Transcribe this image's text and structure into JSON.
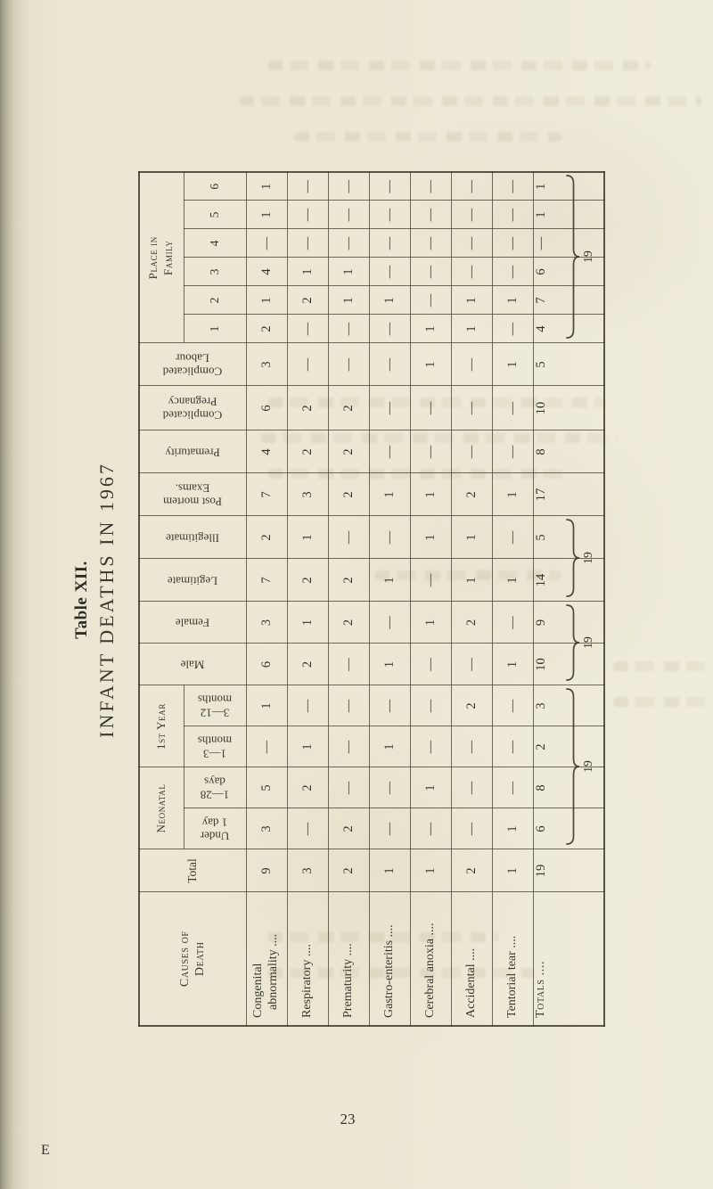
{
  "title": {
    "table_label": "Table XII.",
    "heading": "INFANT DEATHS IN 1967"
  },
  "table": {
    "corner_lines": [
      "Causes of",
      "Death"
    ],
    "total_label": "Total",
    "groups": [
      {
        "label": "Neonatal",
        "subs": [
          [
            "Under",
            "1 day"
          ],
          [
            "1—28",
            "days"
          ]
        ]
      },
      {
        "label": "1st Year",
        "subs": [
          [
            "1—3",
            "months"
          ],
          [
            "3—12",
            "months"
          ]
        ]
      }
    ],
    "vertical_headers": [
      [
        "Male"
      ],
      [
        "Female"
      ],
      [
        "Legitimate"
      ],
      [
        "Illegitimate"
      ],
      [
        "Post mortem",
        "Exams."
      ],
      [
        "Prematurity"
      ],
      [
        "Complicated",
        "Pregnancy"
      ],
      [
        "Complicated",
        "Labour"
      ]
    ],
    "place_group": {
      "label_lines": [
        "Place in",
        "Family"
      ],
      "subs": [
        "1",
        "2",
        "3",
        "4",
        "5",
        "6"
      ]
    },
    "column_order_note": "values arrays follow: Total, Under 1 day, 1-28 days, 1-3 months, 3-12 months, Male, Female, Legitimate, Illegitimate, Post mortem Exams., Prematurity, Complicated Pregnancy, Complicated Labour, Place 1, 2, 3, 4, 5, 6",
    "rows": [
      {
        "label_lines": [
          "Congenital",
          "abnormality ...."
        ],
        "values": [
          "9",
          "3",
          "5",
          "—",
          "1",
          "6",
          "3",
          "7",
          "2",
          "7",
          "4",
          "6",
          "3",
          "2",
          "1",
          "4",
          "—",
          "1",
          "1"
        ]
      },
      {
        "label_lines": [
          "Respiratory ...."
        ],
        "values": [
          "3",
          "—",
          "2",
          "1",
          "—",
          "2",
          "1",
          "2",
          "1",
          "3",
          "2",
          "2",
          "—",
          "—",
          "2",
          "1",
          "—",
          "—",
          "—"
        ]
      },
      {
        "label_lines": [
          "Prematurity ...."
        ],
        "values": [
          "2",
          "2",
          "—",
          "—",
          "—",
          "—",
          "2",
          "2",
          "—",
          "2",
          "2",
          "2",
          "—",
          "—",
          "1",
          "1",
          "—",
          "—",
          "—"
        ]
      },
      {
        "label_lines": [
          "Gastro-enteritis ...."
        ],
        "values": [
          "1",
          "—",
          "—",
          "1",
          "—",
          "1",
          "—",
          "1",
          "—",
          "1",
          "—",
          "—",
          "—",
          "—",
          "1",
          "—",
          "—",
          "—",
          "—"
        ]
      },
      {
        "label_lines": [
          "Cerebral anoxia ...."
        ],
        "values": [
          "1",
          "—",
          "1",
          "—",
          "—",
          "—",
          "1",
          "—",
          "1",
          "1",
          "—",
          "—",
          "1",
          "1",
          "—",
          "—",
          "—",
          "—",
          "—"
        ]
      },
      {
        "label_lines": [
          "Accidental ...."
        ],
        "values": [
          "2",
          "—",
          "—",
          "—",
          "2",
          "—",
          "2",
          "1",
          "1",
          "2",
          "—",
          "—",
          "—",
          "1",
          "1",
          "—",
          "—",
          "—",
          "—"
        ]
      },
      {
        "label_lines": [
          "Tentorial tear ...."
        ],
        "values": [
          "1",
          "1",
          "—",
          "—",
          "—",
          "1",
          "—",
          "1",
          "—",
          "1",
          "—",
          "—",
          "1",
          "—",
          "1",
          "—",
          "—",
          "—",
          "—"
        ]
      }
    ],
    "totals_row": {
      "label": "Totals ....",
      "values": [
        "19",
        "6",
        "8",
        "2",
        "3",
        "10",
        "9",
        "14",
        "5",
        "17",
        "8",
        "10",
        "5",
        "4",
        "7",
        "6",
        "—",
        "1",
        "1"
      ],
      "braces": [
        {
          "from": 1,
          "to": 4,
          "value": "19"
        },
        {
          "from": 5,
          "to": 6,
          "value": "19"
        },
        {
          "from": 7,
          "to": 8,
          "value": "19"
        },
        {
          "from": 13,
          "to": 18,
          "value": "19"
        }
      ]
    }
  },
  "page": {
    "number": "23",
    "footer_letter": "E"
  }
}
